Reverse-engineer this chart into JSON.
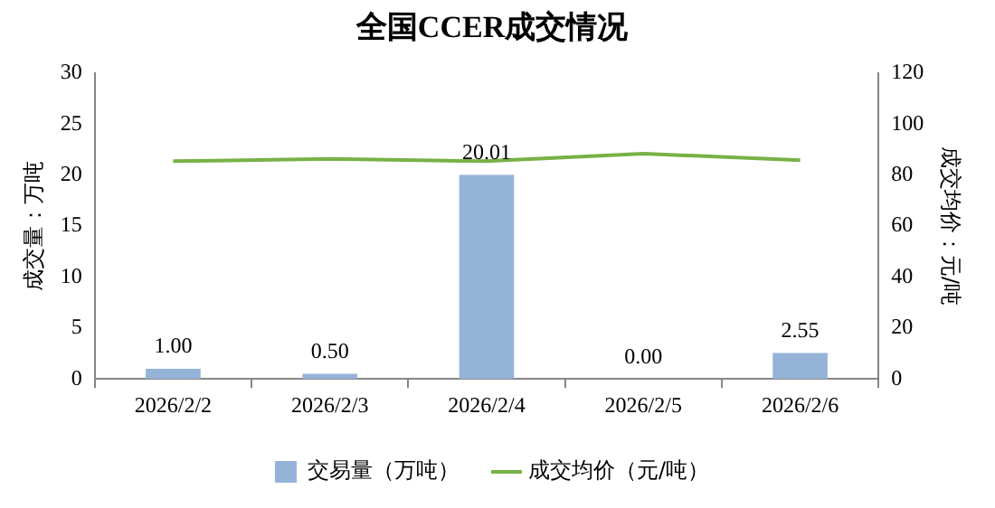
{
  "chart_data": {
    "type": "bar",
    "title": "全国CCER成交情况",
    "ylabel": "成交量：万吨",
    "y2label": "成交均价：元/吨",
    "categories": [
      "2026/2/2",
      "2026/2/3",
      "2026/2/4",
      "2026/2/5",
      "2026/2/6"
    ],
    "series": [
      {
        "name": "交易量（万吨）",
        "color": "#95b3d7",
        "values": [
          1.0,
          0.5,
          20.01,
          0.0,
          2.55
        ],
        "value_labels": [
          "1.00",
          "0.50",
          "20.01",
          "0.00",
          "2.55"
        ]
      },
      {
        "name": "成交均价（元/吨）",
        "type": "line",
        "axis": "y2",
        "color": "#77b146",
        "values": [
          85.4,
          86.3,
          85.4,
          88.4,
          85.8
        ]
      }
    ],
    "ylim": [
      0,
      30
    ],
    "yticks": [
      0,
      5,
      10,
      15,
      20,
      25,
      30
    ],
    "y2lim": [
      0,
      120
    ],
    "y2ticks": [
      0,
      20,
      40,
      60,
      80,
      100,
      120
    ],
    "grid": false,
    "legend": "bottom",
    "marker": "none"
  }
}
